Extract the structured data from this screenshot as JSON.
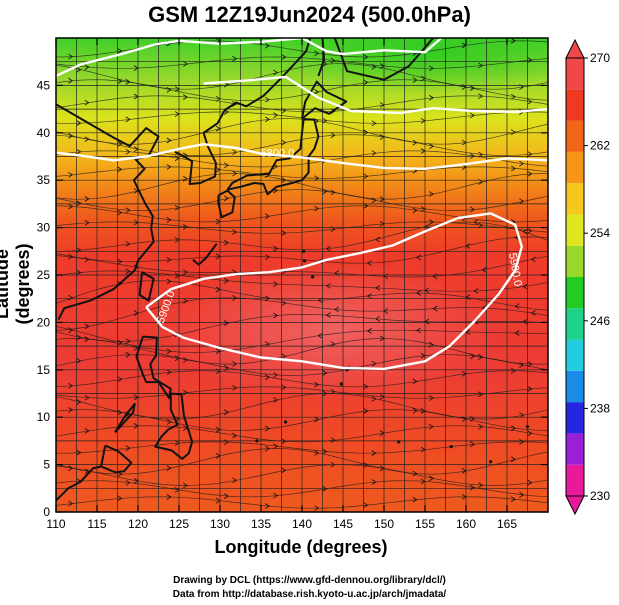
{
  "title": "GSM 12Z19Jun2024 (500.0hPa)",
  "x_axis": {
    "label": "Longitude (degrees)",
    "min": 110,
    "max": 170,
    "ticks": [
      "110",
      "115",
      "120",
      "125",
      "130",
      "135",
      "140",
      "145",
      "150",
      "155",
      "160",
      "165"
    ]
  },
  "y_axis": {
    "label": "Latitude  (degrees)",
    "min": 0,
    "max": 50,
    "ticks": [
      "0",
      "5",
      "10",
      "15",
      "20",
      "25",
      "30",
      "35",
      "40",
      "45"
    ]
  },
  "colorbar": {
    "min": 230,
    "max": 270,
    "ticks": [
      "270",
      "262",
      "254",
      "246",
      "238",
      "230"
    ],
    "colors": [
      "#e8199b",
      "#9b1fd6",
      "#2626e0",
      "#1a8ce8",
      "#22cde0",
      "#1fd28a",
      "#22cc22",
      "#9ad82a",
      "#dde61e",
      "#f5c81c",
      "#f59619",
      "#f26416",
      "#ee3a20",
      "#f04848"
    ]
  },
  "contours": [
    {
      "label": "5800.0"
    },
    {
      "label": "5900.0"
    },
    {
      "label": "5900.0"
    }
  ],
  "credits": {
    "line1": "Drawing by DCL (https://www.gfd-dennou.org/library/dcl/)",
    "line2": "Data from http://database.rish.kyoto-u.ac.jp/arch/jmadata/"
  },
  "colors": {
    "land": "#111111",
    "contour": "#ffffff",
    "grid": "#222222"
  }
}
